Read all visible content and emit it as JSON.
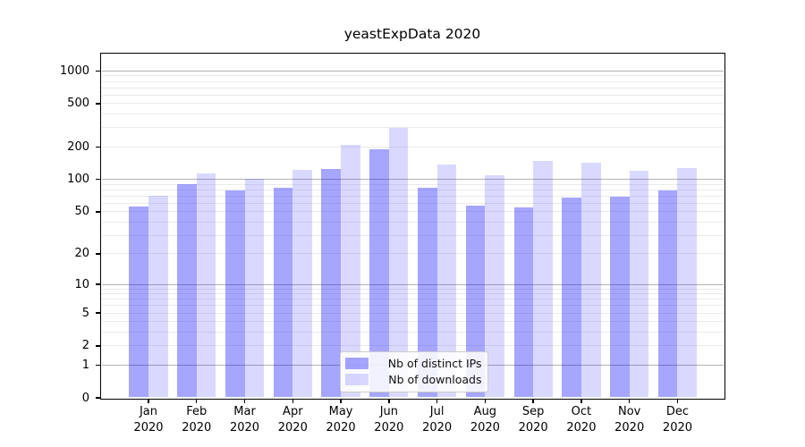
{
  "chart_data": {
    "type": "bar",
    "title": "yeastExpData 2020",
    "categories": [
      "Jan",
      "Feb",
      "Mar",
      "Apr",
      "May",
      "Jun",
      "Jul",
      "Aug",
      "Sep",
      "Oct",
      "Nov",
      "Dec"
    ],
    "x_tick_year": "2020",
    "series": [
      {
        "name": "Nb of distinct IPs",
        "color": "rgba(0,0,255,0.35)",
        "values": [
          56,
          90,
          79,
          83,
          124,
          189,
          84,
          57,
          55,
          68,
          69,
          79
        ]
      },
      {
        "name": "Nb of downloads",
        "color": "rgba(0,0,255,0.15)",
        "values": [
          70,
          113,
          101,
          123,
          210,
          300,
          137,
          109,
          148,
          142,
          121,
          127
        ]
      }
    ],
    "xlabel": "",
    "ylabel": "",
    "yscale": "symlog",
    "yticks": [
      0,
      1,
      2,
      5,
      10,
      20,
      50,
      100,
      200,
      500,
      1000
    ],
    "ylim": [
      0,
      1450
    ],
    "grid": true,
    "legend_position": "bottom-center-inside"
  },
  "colors": {
    "grid_major": "#b3b3b3",
    "grid_minor": "#ebebeb",
    "spine": "#000000",
    "text": "#000000",
    "legend_border": "#cccccc",
    "legend_bg": "rgba(255,255,255,0.85)"
  }
}
